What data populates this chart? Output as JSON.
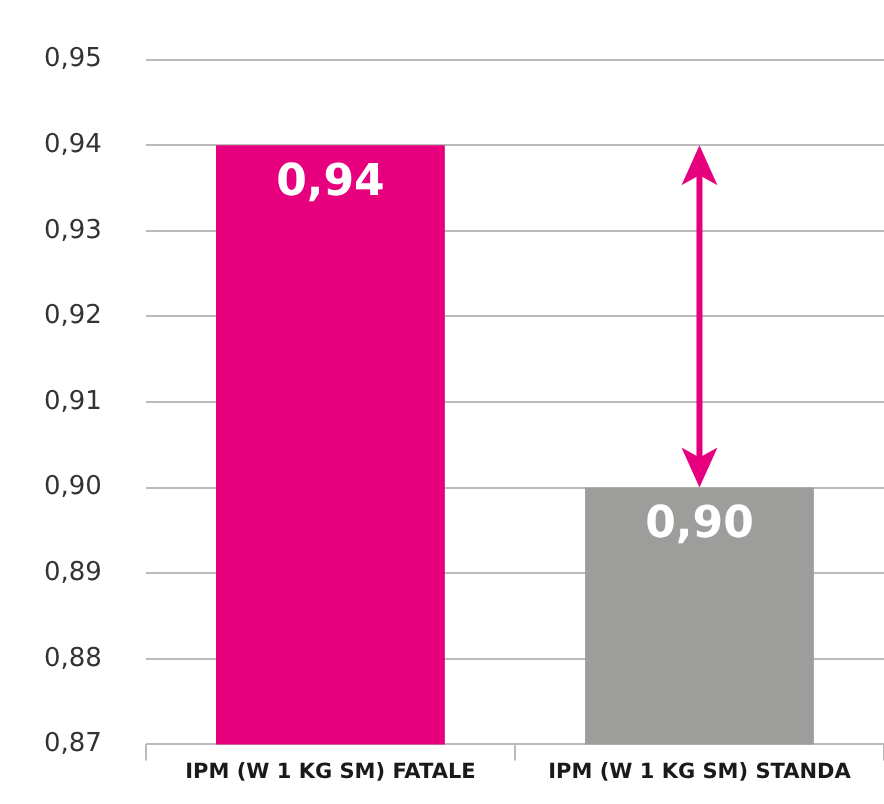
{
  "chart_data": {
    "type": "bar",
    "categories": [
      "IPM (W 1 KG SM) FATALE",
      "IPM (W 1 KG SM) STANDA"
    ],
    "values": [
      0.94,
      0.9
    ],
    "colors": [
      "#e6007e",
      "#9d9d9c"
    ],
    "value_labels": [
      "0,94",
      "0,90"
    ],
    "ylim": [
      0.87,
      0.95
    ],
    "yticks": [
      {
        "value": 0.87,
        "label": "0,87"
      },
      {
        "value": 0.88,
        "label": "0,88"
      },
      {
        "value": 0.89,
        "label": "0,89"
      },
      {
        "value": 0.9,
        "label": "0,90"
      },
      {
        "value": 0.91,
        "label": "0,91"
      },
      {
        "value": 0.92,
        "label": "0,92"
      },
      {
        "value": 0.93,
        "label": "0,93"
      },
      {
        "value": 0.94,
        "label": "0,94"
      },
      {
        "value": 0.95,
        "label": "0,95"
      }
    ],
    "grid": "y",
    "legend": false
  }
}
